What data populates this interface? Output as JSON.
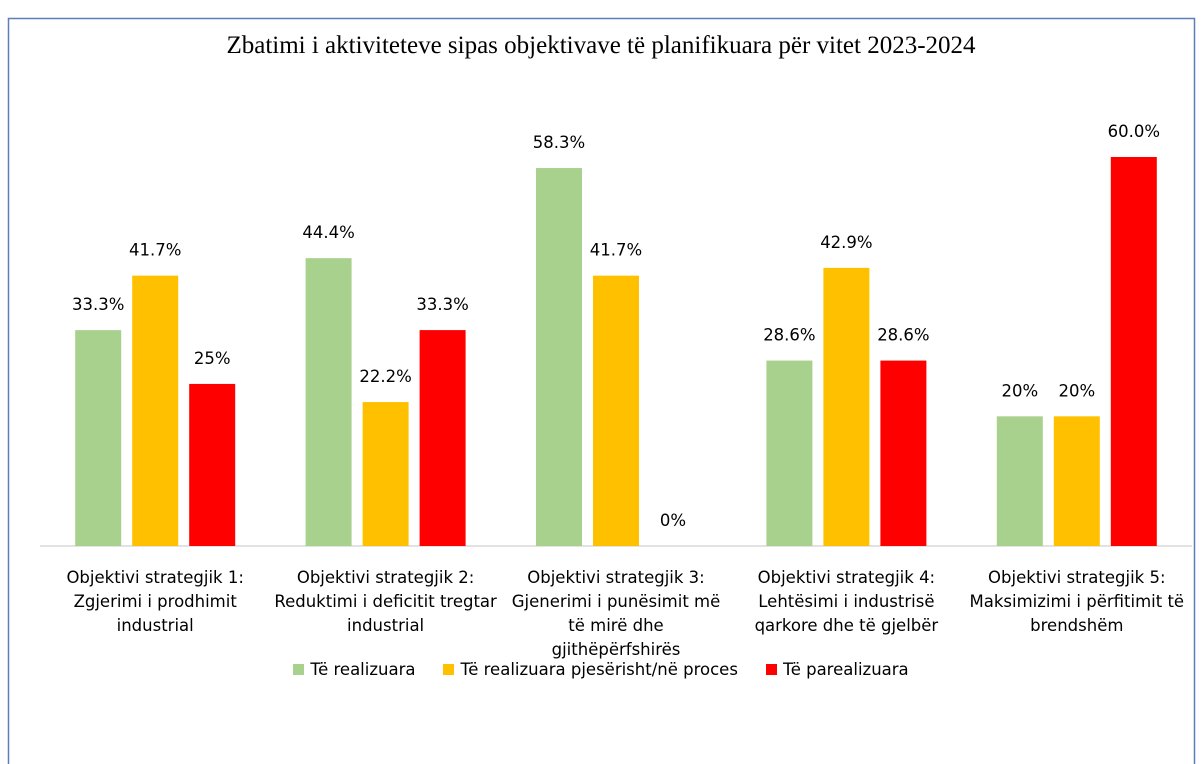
{
  "chart_data": {
    "type": "bar",
    "title": "Zbatimi i aktiviteteve sipas objektivave të planifikuara për vitet 2023-2024",
    "categories": [
      "Objektivi strategjik 1: Zgjerimi i prodhimit industrial",
      "Objektivi strategjik 2: Reduktimi i deficitit tregtar industrial",
      "Objektivi strategjik 3: Gjenerimi i punësimit më të mirë dhe gjithëpërfshirës",
      "Objektivi strategjik 4: Lehtësimi i industrisë qarkore dhe të gjelbër",
      "Objektivi strategjik 5: Maksimizimi i përfitimit të brendshëm"
    ],
    "series": [
      {
        "name": "Të realizuara",
        "color": "#a9d18e",
        "values": [
          33.3,
          44.4,
          58.3,
          28.6,
          20
        ],
        "value_labels": [
          "33.3%",
          "44.4%",
          "58.3%",
          "28.6%",
          "20%"
        ]
      },
      {
        "name": "Të realizuara pjesërisht/në proces",
        "color": "#ffc000",
        "values": [
          41.7,
          22.2,
          41.7,
          42.9,
          20
        ],
        "value_labels": [
          "41.7%",
          "22.2%",
          "41.7%",
          "42.9%",
          "20%"
        ]
      },
      {
        "name": "Të parealizuara",
        "color": "#ff0000",
        "values": [
          25,
          33.3,
          0,
          28.6,
          60
        ],
        "value_labels": [
          "25%",
          "33.3%",
          "0%",
          "28.6%",
          "60.0%"
        ]
      }
    ],
    "ylim": [
      0,
      60
    ],
    "legend": "bottom"
  }
}
